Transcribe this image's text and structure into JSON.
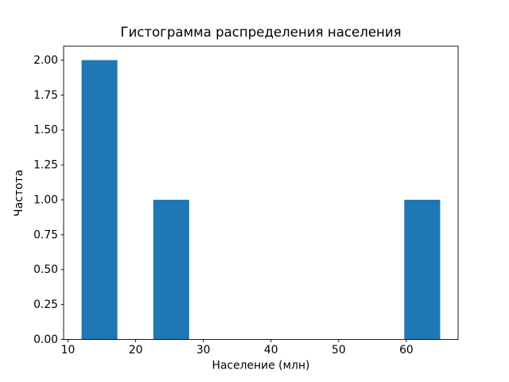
{
  "figure": {
    "background_color": "#ffffff",
    "spine_color": "#000000"
  },
  "chart_data": {
    "type": "bar",
    "subtype": "histogram",
    "title": "Гистограмма распределения населения",
    "xlabel": "Население (млн)",
    "ylabel": "Частота",
    "bar_color": "#1f77b4",
    "bin_edges": [
      12.0,
      17.3,
      22.6,
      27.9,
      33.2,
      38.5,
      43.8,
      49.1,
      54.4,
      59.7,
      65.0
    ],
    "counts": [
      2,
      0,
      1,
      0,
      0,
      0,
      0,
      0,
      0,
      1
    ],
    "xlim": [
      9.35,
      67.65
    ],
    "ylim": [
      0,
      2.1
    ],
    "xticks": [
      {
        "value": 10,
        "label": "10"
      },
      {
        "value": 20,
        "label": "20"
      },
      {
        "value": 30,
        "label": "30"
      },
      {
        "value": 40,
        "label": "40"
      },
      {
        "value": 50,
        "label": "50"
      },
      {
        "value": 60,
        "label": "60"
      }
    ],
    "yticks": [
      {
        "value": 0.0,
        "label": "0.00"
      },
      {
        "value": 0.25,
        "label": "0.25"
      },
      {
        "value": 0.5,
        "label": "0.50"
      },
      {
        "value": 0.75,
        "label": "0.75"
      },
      {
        "value": 1.0,
        "label": "1.00"
      },
      {
        "value": 1.25,
        "label": "1.25"
      },
      {
        "value": 1.5,
        "label": "1.50"
      },
      {
        "value": 1.75,
        "label": "1.75"
      },
      {
        "value": 2.0,
        "label": "2.00"
      }
    ],
    "grid": false,
    "legend": null
  }
}
